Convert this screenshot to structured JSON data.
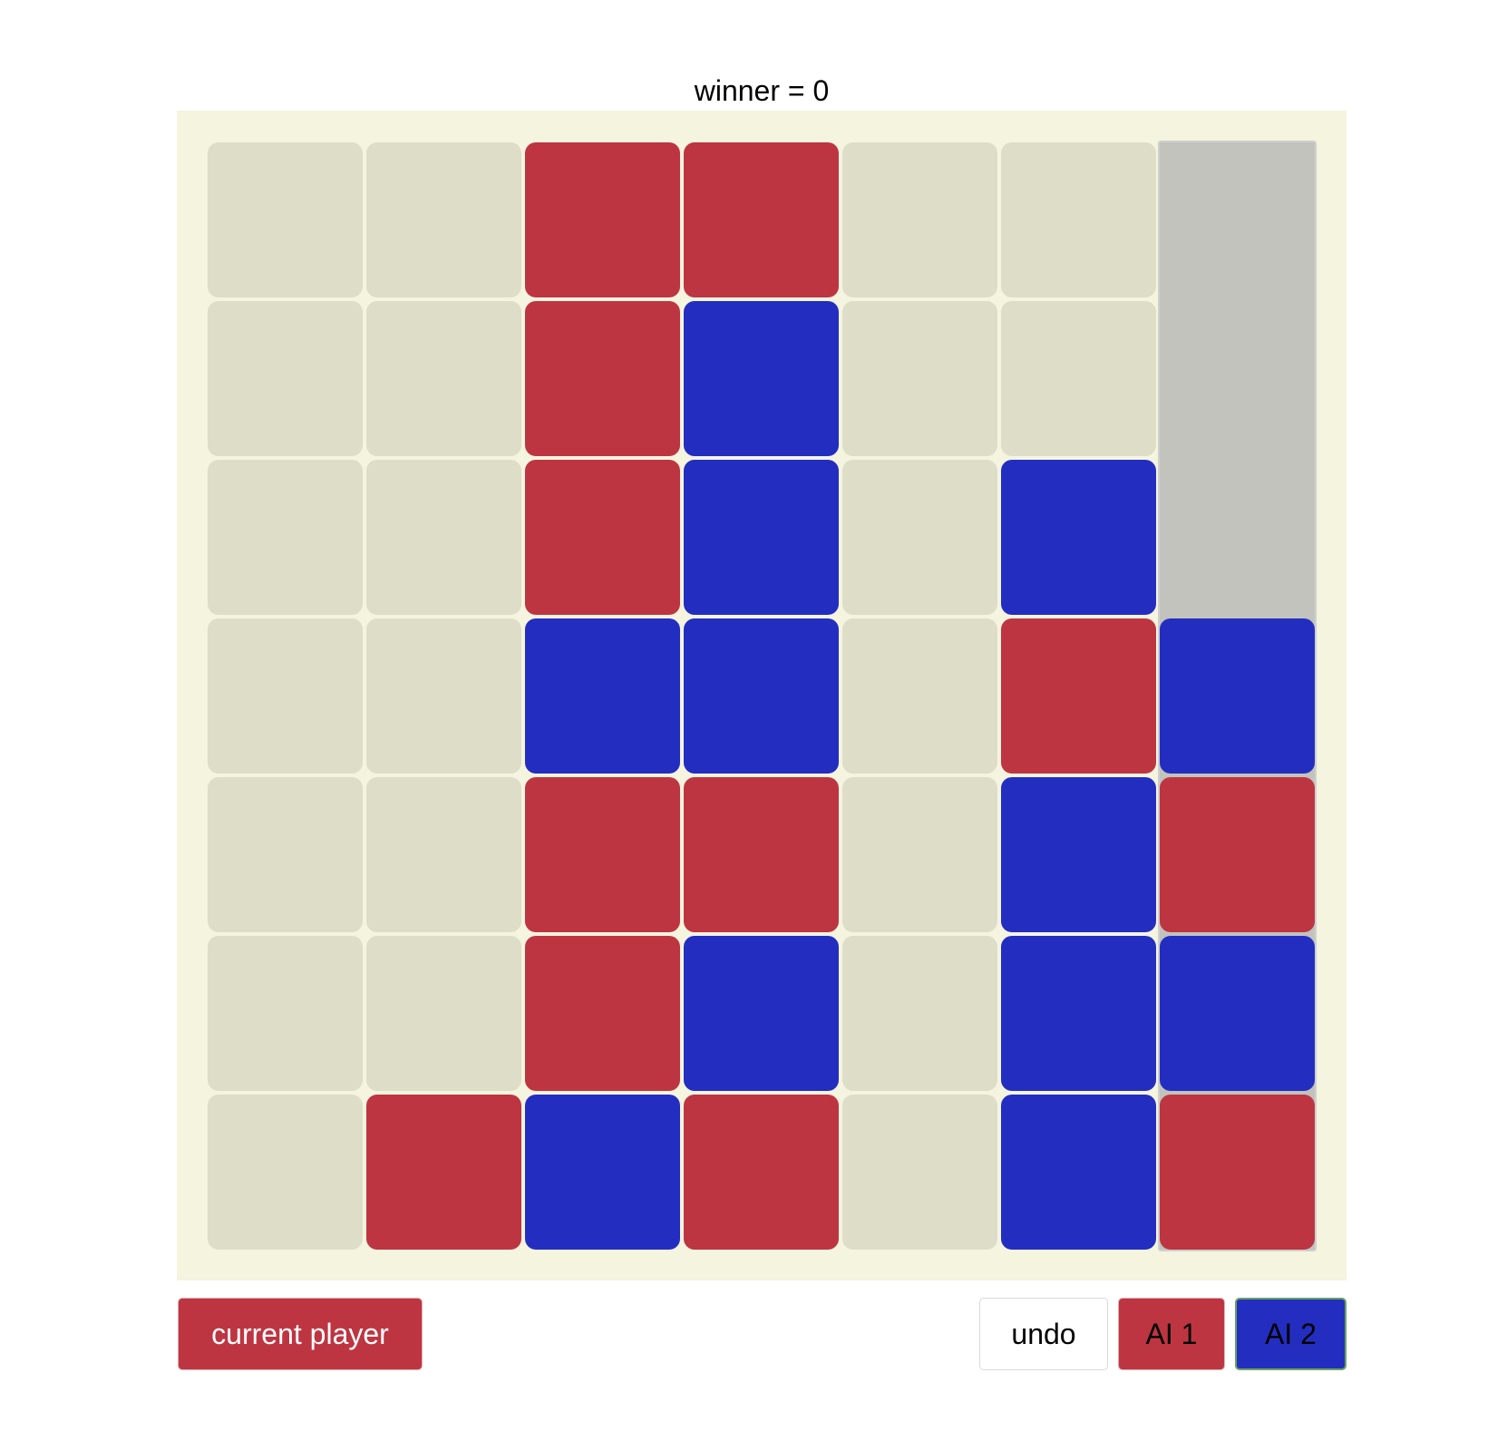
{
  "status": {
    "winner_text": "winner = 0"
  },
  "colors": {
    "board_background": "#f4f4df",
    "empty_cell": "#ddddc8",
    "hover_column": "#c2c3bd",
    "player_1": "#be3542",
    "player_2": "#232ec0"
  },
  "board": {
    "rows": 7,
    "columns": 7,
    "hover_column": 6,
    "cells": [
      [
        0,
        0,
        1,
        1,
        0,
        0,
        0
      ],
      [
        0,
        0,
        1,
        2,
        0,
        0,
        0
      ],
      [
        0,
        0,
        1,
        2,
        0,
        2,
        0
      ],
      [
        0,
        0,
        2,
        2,
        0,
        1,
        2
      ],
      [
        0,
        0,
        1,
        1,
        0,
        2,
        1
      ],
      [
        0,
        0,
        1,
        2,
        0,
        2,
        2
      ],
      [
        0,
        1,
        2,
        1,
        0,
        2,
        1
      ]
    ]
  },
  "controls": {
    "current_player_label": "current player",
    "current_player": 1,
    "undo_label": "undo",
    "ai1_label": "AI 1",
    "ai2_label": "AI 2"
  }
}
